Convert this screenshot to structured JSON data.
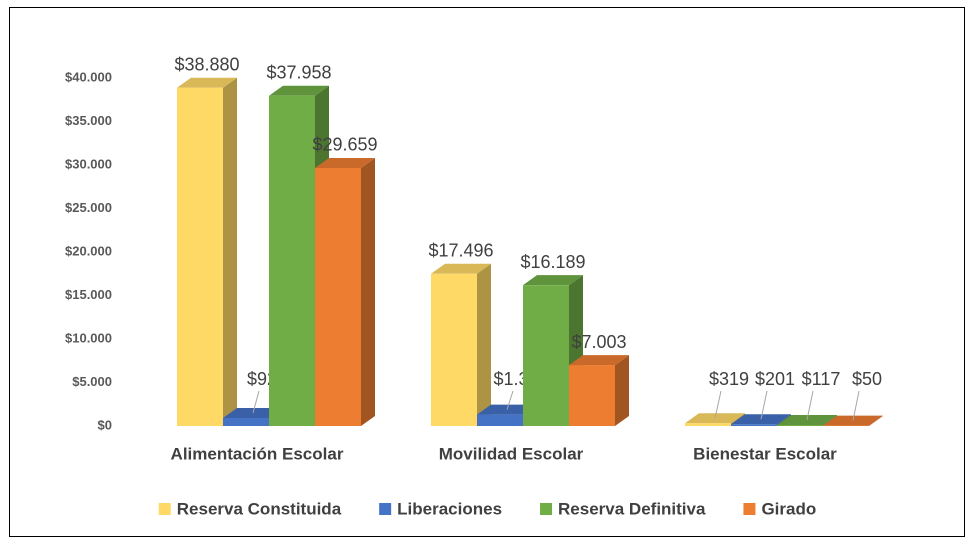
{
  "chart_data": {
    "type": "bar3d",
    "categories": [
      "Alimentación Escolar",
      "Movilidad Escolar",
      "Bienestar Escolar"
    ],
    "series": [
      {
        "name": "Reserva Constituida",
        "color": "#ffd966",
        "values": [
          38880,
          17496,
          319
        ],
        "value_labels": [
          "$38.880",
          "$17.496",
          "$319"
        ]
      },
      {
        "name": "Liberaciones",
        "color": "#4472c4",
        "values": [
          922,
          1307,
          201
        ],
        "value_labels": [
          "$922",
          "$1.307",
          "$201"
        ]
      },
      {
        "name": "Reserva Definitiva",
        "color": "#70ad47",
        "values": [
          37958,
          16189,
          117
        ],
        "value_labels": [
          "$37.958",
          "$16.189",
          "$117"
        ]
      },
      {
        "name": "Girado",
        "color": "#ed7d31",
        "values": [
          29659,
          7003,
          50
        ],
        "value_labels": [
          "$29.659",
          "$7.003",
          "$50"
        ]
      }
    ],
    "ylim": [
      0,
      40000
    ],
    "yticks": [
      {
        "value": 0,
        "label": "$0"
      },
      {
        "value": 5000,
        "label": "$5.000"
      },
      {
        "value": 10000,
        "label": "$10.000"
      },
      {
        "value": 15000,
        "label": "$15.000"
      },
      {
        "value": 20000,
        "label": "$20.000"
      },
      {
        "value": 25000,
        "label": "$25.000"
      },
      {
        "value": 30000,
        "label": "$30.000"
      },
      {
        "value": 35000,
        "label": "$35.000"
      },
      {
        "value": 40000,
        "label": "$40.000"
      }
    ],
    "legend": "bottom"
  }
}
